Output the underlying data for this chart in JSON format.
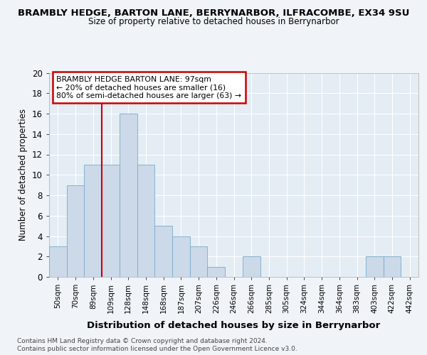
{
  "title1": "BRAMBLY HEDGE, BARTON LANE, BERRYNARBOR, ILFRACOMBE, EX34 9SU",
  "title2": "Size of property relative to detached houses in Berrynarbor",
  "xlabel": "Distribution of detached houses by size in Berrynarbor",
  "ylabel": "Number of detached properties",
  "categories": [
    "50sqm",
    "70sqm",
    "89sqm",
    "109sqm",
    "128sqm",
    "148sqm",
    "168sqm",
    "187sqm",
    "207sqm",
    "226sqm",
    "246sqm",
    "266sqm",
    "285sqm",
    "305sqm",
    "324sqm",
    "344sqm",
    "364sqm",
    "383sqm",
    "403sqm",
    "422sqm",
    "442sqm"
  ],
  "values": [
    3,
    9,
    11,
    11,
    16,
    11,
    5,
    4,
    3,
    1,
    0,
    2,
    0,
    0,
    0,
    0,
    0,
    0,
    2,
    2,
    0
  ],
  "bar_color": "#ccd9e8",
  "bar_edge_color": "#7aaac8",
  "annotation_line1": "BRAMBLY HEDGE BARTON LANE: 97sqm",
  "annotation_line2": "← 20% of detached houses are smaller (16)",
  "annotation_line3": "80% of semi-detached houses are larger (63) →",
  "annotation_box_color": "#ffffff",
  "annotation_border_color": "#cc0000",
  "ylim": [
    0,
    20
  ],
  "yticks": [
    0,
    2,
    4,
    6,
    8,
    10,
    12,
    14,
    16,
    18,
    20
  ],
  "vline_color": "#cc0000",
  "vline_index": 2.5,
  "footer1": "Contains HM Land Registry data © Crown copyright and database right 2024.",
  "footer2": "Contains public sector information licensed under the Open Government Licence v3.0.",
  "background_color": "#f0f4f8",
  "plot_background_color": "#e4ecf4"
}
